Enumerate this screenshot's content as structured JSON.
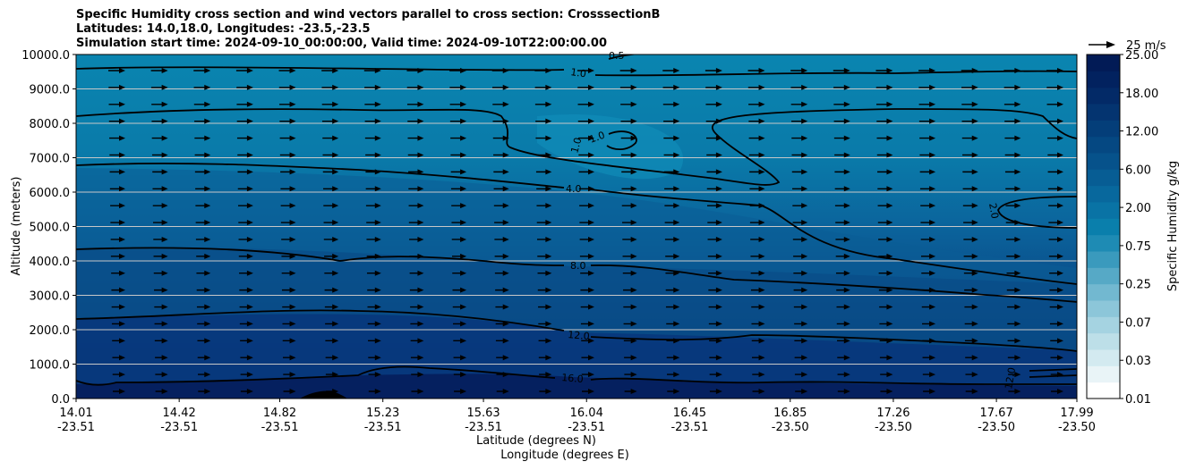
{
  "chart_data": {
    "type": "heatmap",
    "title_lines": [
      "Specific Humidity cross section and wind vectors parallel to cross section: CrosssectionB",
      "Latitudes: 14.0,18.0, Longitudes: -23.5,-23.5",
      "Simulation start time: 2024-09-10_00:00:00, Valid time: 2024-09-10T22:00:00.00"
    ],
    "ylabel": "Altitude (meters)",
    "xlabel_lines": [
      "Latitude (degrees N)",
      "Longitude (degrees E)"
    ],
    "y_ticks": [
      "0.0",
      "1000.0",
      "2000.0",
      "3000.0",
      "4000.0",
      "5000.0",
      "6000.0",
      "7000.0",
      "8000.0",
      "9000.0",
      "10000.0"
    ],
    "ylim": [
      0,
      10000
    ],
    "x_ticks": [
      {
        "lat": "14.01",
        "lon": "-23.51"
      },
      {
        "lat": "14.42",
        "lon": "-23.51"
      },
      {
        "lat": "14.82",
        "lon": "-23.51"
      },
      {
        "lat": "15.23",
        "lon": "-23.51"
      },
      {
        "lat": "15.63",
        "lon": "-23.51"
      },
      {
        "lat": "16.04",
        "lon": "-23.51"
      },
      {
        "lat": "16.45",
        "lon": "-23.51"
      },
      {
        "lat": "16.85",
        "lon": "-23.50"
      },
      {
        "lat": "17.26",
        "lon": "-23.50"
      },
      {
        "lat": "17.67",
        "lon": "-23.50"
      },
      {
        "lat": "17.99",
        "lon": "-23.50"
      }
    ],
    "xlim": [
      14.01,
      17.99
    ],
    "colorbar": {
      "label": "Specific Humidity g/kg",
      "ticks": [
        "0.01",
        "0.03",
        "0.07",
        "0.25",
        "0.75",
        "2.00",
        "6.00",
        "12.00",
        "18.00",
        "25.00"
      ]
    },
    "quiver_key": "25 m/s",
    "contour_labels": [
      "0.5",
      "1.0",
      "1.0",
      "1.0",
      "4.0",
      "2.0",
      "8.0",
      "12.0",
      "16.0",
      "12.0"
    ],
    "grid": "horizontal",
    "colors": {
      "upper": "#0a80ad",
      "mid": "#0c5f98",
      "lower": "#0a3a7c",
      "lowest": "#061f62"
    }
  }
}
